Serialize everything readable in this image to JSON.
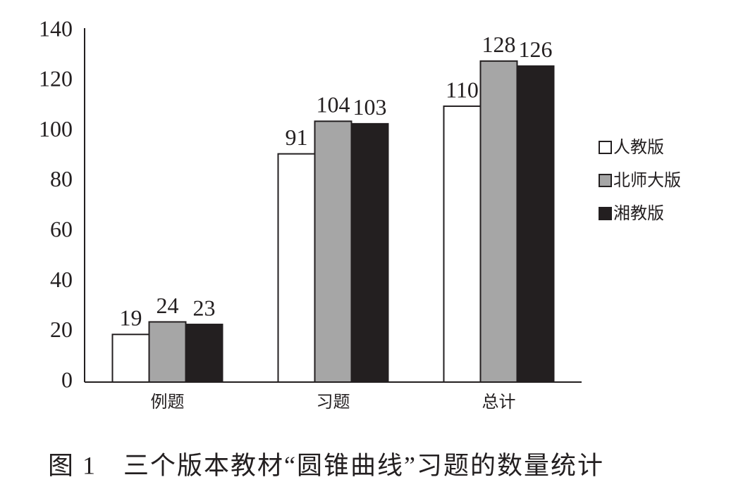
{
  "chart_data": {
    "type": "bar",
    "title": "图 1　三个版本教材“圆锥曲线”习题的数量统计",
    "categories": [
      "例题",
      "习题",
      "总计"
    ],
    "series": [
      {
        "name": "人教版",
        "color": "#ffffff",
        "values": [
          19,
          91,
          110
        ]
      },
      {
        "name": "北师大版",
        "color": "#a6a6a6",
        "values": [
          24,
          104,
          128
        ]
      },
      {
        "name": "湘教版",
        "color": "#231f20",
        "values": [
          23,
          103,
          126
        ]
      }
    ],
    "ylim": [
      0,
      140
    ],
    "yticks": [
      0,
      20,
      40,
      60,
      80,
      100,
      120,
      140
    ],
    "legend": "right"
  }
}
